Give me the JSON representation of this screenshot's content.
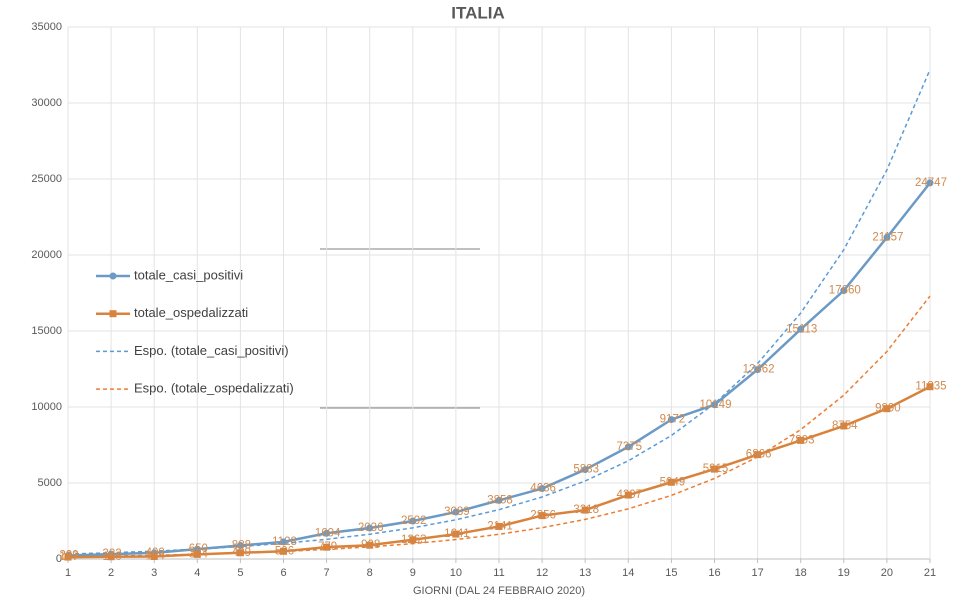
{
  "chart_data": {
    "type": "line",
    "title": "ITALIA",
    "x_label": "GIORNI (DAL 24 FEBBRAIO 2020)",
    "x": [
      1,
      2,
      3,
      4,
      5,
      6,
      7,
      8,
      9,
      10,
      11,
      12,
      13,
      14,
      15,
      16,
      17,
      18,
      19,
      20,
      21
    ],
    "xlim": [
      1,
      21
    ],
    "xticks": [
      1,
      2,
      3,
      4,
      5,
      6,
      7,
      8,
      9,
      10,
      11,
      12,
      13,
      14,
      15,
      16,
      17,
      18,
      19,
      20,
      21
    ],
    "ylim": [
      0,
      35000
    ],
    "yticks": [
      0,
      5000,
      10000,
      15000,
      20000,
      25000,
      30000,
      35000
    ],
    "grid": true,
    "legend": "left",
    "series": [
      {
        "name": "totale_casi_positivi",
        "color": "#6a9ac5",
        "marker": "circle",
        "dashed": false,
        "data_labels": true,
        "label_color": "#d08a4e",
        "values": [
          229,
          322,
          400,
          650,
          888,
          1128,
          1694,
          2036,
          2502,
          3089,
          3858,
          4636,
          5883,
          7375,
          9172,
          10149,
          12462,
          15113,
          17660,
          21157,
          24747
        ]
      },
      {
        "name": "totale_ospedalizzati",
        "color": "#d9823b",
        "marker": "square",
        "dashed": false,
        "data_labels": true,
        "label_color": "#d08a4e",
        "values": [
          127,
          150,
          164,
          304,
          409,
          506,
          779,
          908,
          1263,
          1641,
          2141,
          2856,
          3218,
          4207,
          5049,
          5915,
          6866,
          7803,
          8754,
          9890,
          11335
        ]
      },
      {
        "name": "Espo. (totale_casi_positivi)",
        "color": "#5b9bd5",
        "marker": "none",
        "dashed": true,
        "data_labels": false,
        "values": [
          327,
          411,
          517,
          650,
          820,
          1030,
          1295,
          1630,
          2050,
          2580,
          3245,
          4080,
          5135,
          6460,
          8125,
          10220,
          12860,
          16180,
          20350,
          25600,
          32200
        ]
      },
      {
        "name": "Espo. (totale_ospedalizzati)",
        "color": "#ed7d31",
        "marker": "none",
        "dashed": true,
        "data_labels": false,
        "values": [
          152,
          193,
          245,
          310,
          393,
          500,
          630,
          800,
          1010,
          1280,
          1625,
          2060,
          2605,
          3300,
          4185,
          5300,
          6720,
          8510,
          10780,
          13650,
          17300
        ]
      }
    ]
  }
}
